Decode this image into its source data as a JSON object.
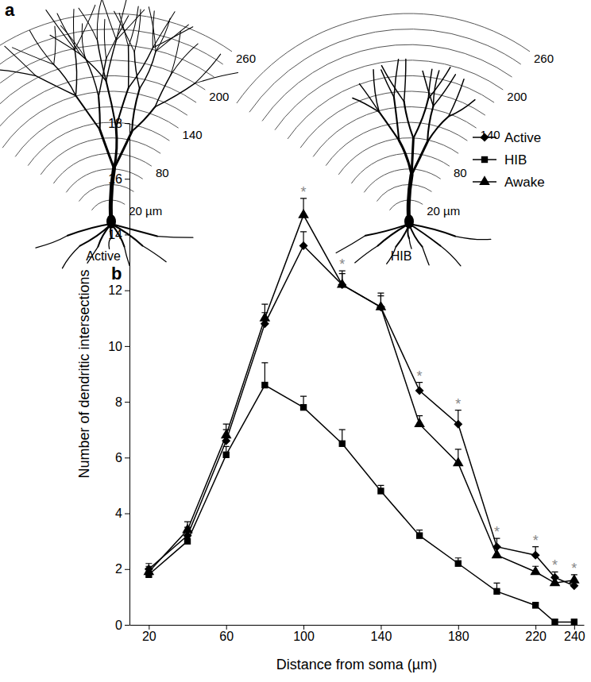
{
  "panel_a": {
    "label": "a",
    "neurons": [
      {
        "name": "Active"
      },
      {
        "name": "HIB"
      }
    ],
    "rings": {
      "values": [
        20,
        40,
        60,
        80,
        100,
        120,
        140,
        160,
        180,
        200,
        220,
        240,
        260
      ],
      "labels": [
        {
          "value": 20,
          "label": "20 µm"
        },
        80,
        140,
        200,
        260
      ]
    }
  },
  "chart_data": {
    "type": "line",
    "title": "b",
    "x_label": "Distance from soma (µm)",
    "y_label": "Number of dendritic intersections",
    "x": [
      20,
      40,
      60,
      80,
      100,
      120,
      140,
      160,
      180,
      200,
      220,
      230,
      240
    ],
    "series": [
      {
        "name": "Active",
        "color": "#000000",
        "marker": "diamond",
        "values": [
          2.0,
          3.2,
          6.6,
          10.8,
          13.6,
          12.2,
          11.4,
          8.4,
          7.2,
          2.8,
          2.5,
          1.7,
          1.4
        ],
        "errors": [
          0.2,
          0.3,
          0.4,
          0.4,
          0.5,
          0.4,
          0.4,
          0.3,
          0.5,
          0.3,
          0.3,
          0.2,
          0.2
        ]
      },
      {
        "name": "HIB",
        "color": "#000000",
        "marker": "square",
        "values": [
          1.8,
          3.0,
          6.1,
          8.6,
          7.8,
          6.5,
          4.8,
          3.2,
          2.2,
          1.2,
          0.7,
          0.1,
          0.1
        ],
        "errors": [
          0.2,
          0.2,
          0.3,
          0.8,
          0.4,
          0.5,
          0.2,
          0.2,
          0.2,
          0.3,
          0.1,
          0.1,
          0.1
        ]
      },
      {
        "name": "Awake",
        "color": "#000000",
        "marker": "triangle",
        "values": [
          1.9,
          3.4,
          6.8,
          11.0,
          14.7,
          12.2,
          11.4,
          7.2,
          5.8,
          2.5,
          1.9,
          1.5,
          1.6
        ],
        "errors": [
          0.2,
          0.3,
          0.4,
          0.5,
          0.6,
          0.5,
          0.5,
          0.3,
          0.5,
          0.3,
          0.2,
          0.2,
          0.2
        ]
      }
    ],
    "significance": {
      "x": [
        100,
        120,
        160,
        180,
        200,
        220,
        230,
        240
      ],
      "label": "*"
    },
    "xlim": [
      10,
      245
    ],
    "xticks": [
      20,
      60,
      100,
      140,
      180,
      220,
      240
    ],
    "ylim": [
      0,
      18
    ],
    "yticks": [
      0,
      2,
      4,
      6,
      8,
      10,
      12,
      14,
      16,
      18
    ],
    "legend": "top-right",
    "grid": false
  }
}
